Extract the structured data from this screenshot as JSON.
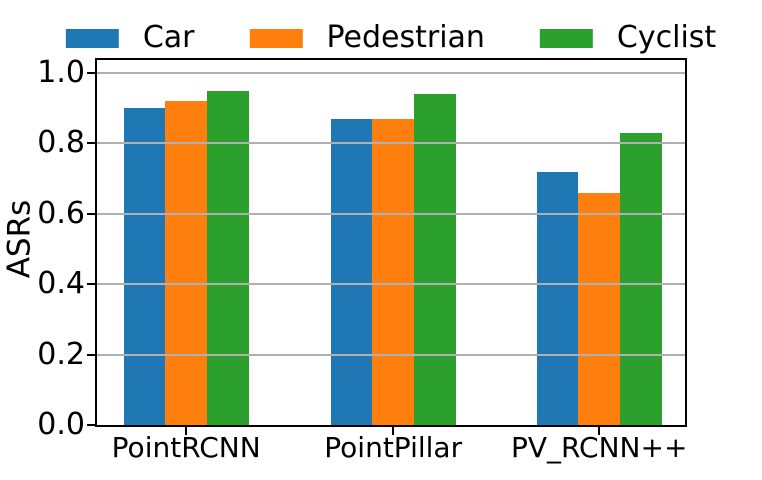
{
  "chart_data": {
    "type": "bar",
    "title": "",
    "xlabel": "",
    "ylabel": "ASRs",
    "categories": [
      "PointRCNN",
      "PointPillar",
      "PV_RCNN++"
    ],
    "series": [
      {
        "name": "Car",
        "color": "#1f77b4",
        "values": [
          0.9,
          0.87,
          0.72
        ]
      },
      {
        "name": "Pedestrian",
        "color": "#ff7f0e",
        "values": [
          0.92,
          0.87,
          0.66
        ]
      },
      {
        "name": "Cyclist",
        "color": "#2ca02c",
        "values": [
          0.95,
          0.94,
          0.83
        ]
      }
    ],
    "y_ticks": [
      "0.0",
      "0.2",
      "0.4",
      "0.6",
      "0.8",
      "1.0"
    ],
    "ylim": [
      0.0,
      1.05
    ],
    "grid": true,
    "grid_over_bars": true,
    "legend_position": "top-center"
  }
}
